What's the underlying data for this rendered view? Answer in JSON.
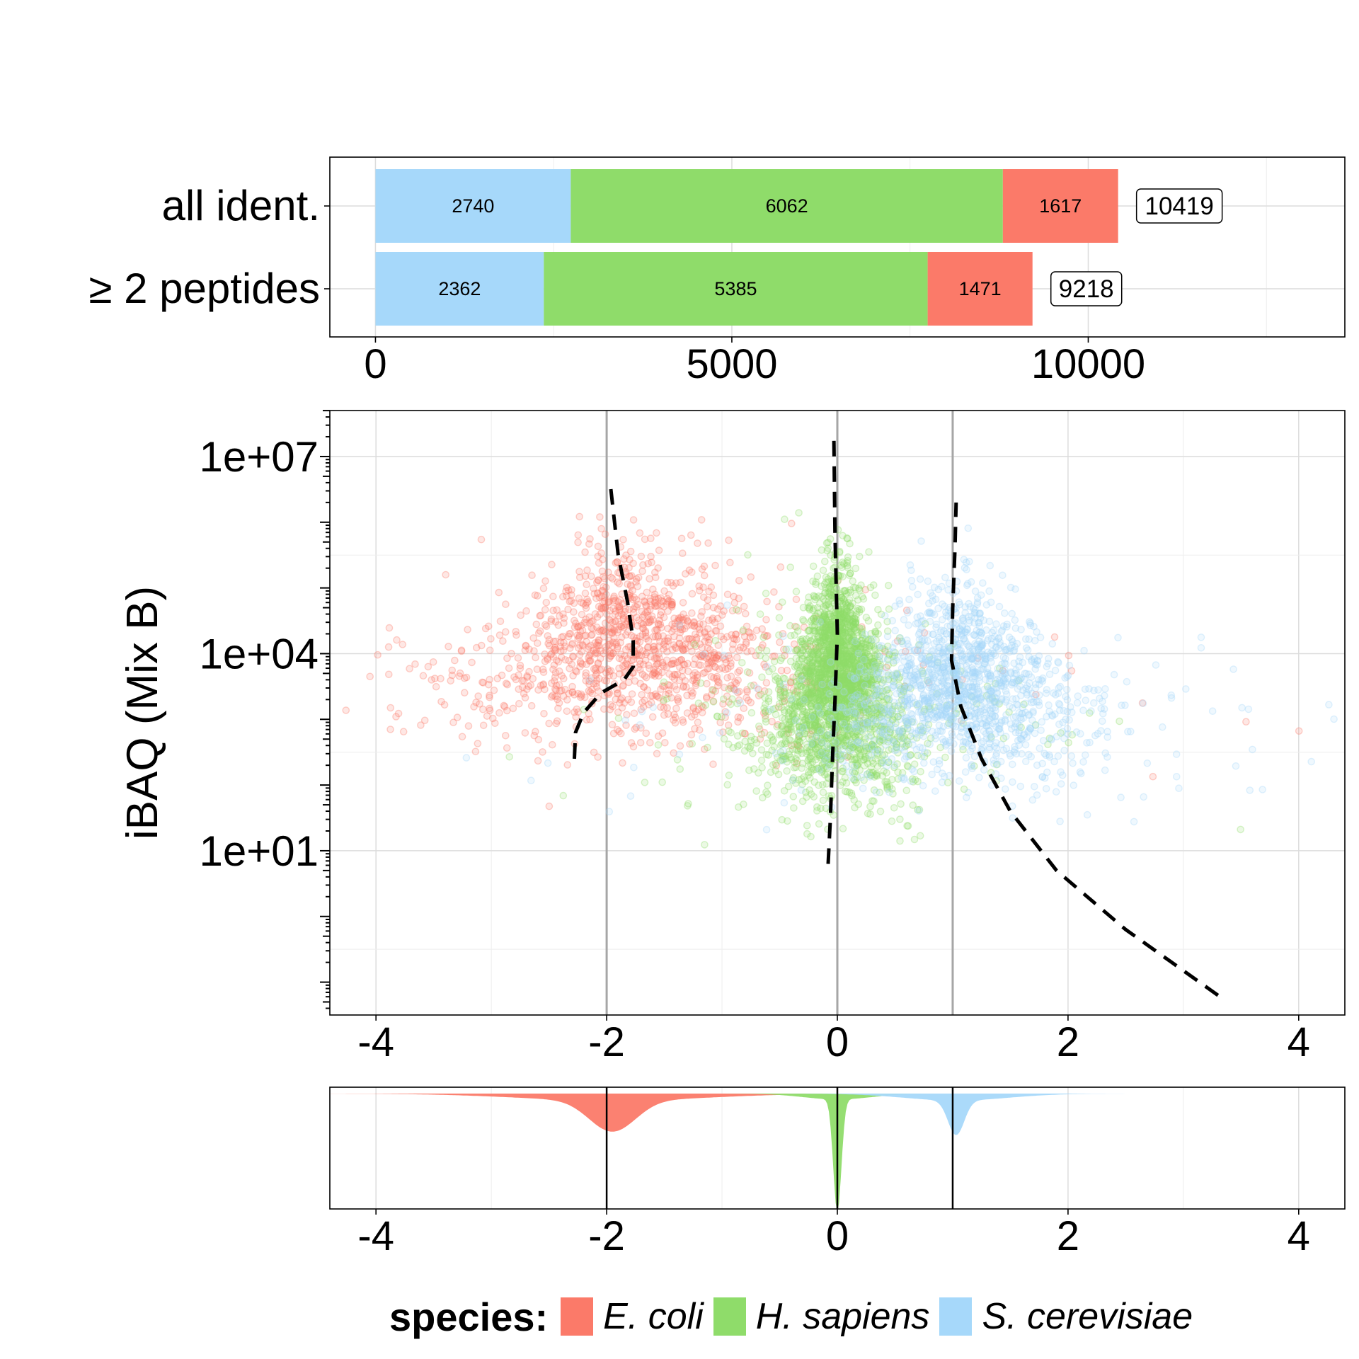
{
  "chart_data": [
    {
      "type": "bar",
      "orientation": "horizontal",
      "stacked": true,
      "categories": [
        "all ident.",
        "≥ 2 peptides"
      ],
      "series": [
        {
          "name": "S. cerevisiae",
          "color": "#a6d8fa",
          "values": [
            2740,
            2362
          ]
        },
        {
          "name": "H. sapiens",
          "color": "#8fdc6a",
          "values": [
            6062,
            5385
          ]
        },
        {
          "name": "E. coli",
          "color": "#fb7a69",
          "values": [
            1617,
            1471
          ]
        }
      ],
      "totals": [
        "10419",
        "9218"
      ],
      "xlim": [
        -640,
        13600
      ],
      "xticks": [
        "0",
        "5000",
        "10000"
      ],
      "grid": true
    },
    {
      "type": "scatter",
      "ylabel": "iBAQ (Mix B)",
      "ylog": true,
      "xlim": [
        -4.4,
        4.4
      ],
      "ylim_log10": [
        -1.5,
        7.7
      ],
      "xticks": [
        "-4",
        "-2",
        "0",
        "2",
        "4"
      ],
      "yticks": [
        "1e+01",
        "1e+04",
        "1e+07"
      ],
      "expected_ratios": [
        -2,
        0,
        1
      ],
      "grid": true,
      "series": [
        {
          "name": "E. coli",
          "color": "#fb7a69",
          "center": -1.75,
          "spread": 0.35,
          "log10_center": 4.0,
          "log10_spread": 0.7,
          "count": 1300
        },
        {
          "name": "H. sapiens",
          "color": "#8fdc6a",
          "center": 0.0,
          "spread": 0.12,
          "log10_center": 3.5,
          "log10_spread": 0.8,
          "count": 2600
        },
        {
          "name": "S. cerevisiae",
          "color": "#a6d8fa",
          "center": 1.05,
          "spread": 0.25,
          "log10_center": 3.4,
          "log10_spread": 0.7,
          "count": 1500
        }
      ],
      "trend_lines": [
        {
          "name": "E. coli",
          "x": [
            -2.28,
            -2.27,
            -2.2,
            -2.05,
            -1.85,
            -1.77,
            -1.77,
            -1.82,
            -1.9,
            -1.97
          ],
          "log10_y": [
            2.4,
            2.8,
            3.1,
            3.4,
            3.6,
            3.8,
            4.2,
            4.8,
            5.5,
            6.6
          ]
        },
        {
          "name": "H. sapiens",
          "x": [
            -0.08,
            -0.06,
            -0.04,
            -0.02,
            0.0,
            -0.02,
            -0.03
          ],
          "log10_y": [
            0.8,
            1.5,
            2.5,
            3.3,
            4.3,
            5.8,
            7.3
          ]
        },
        {
          "name": "S. cerevisiae",
          "x": [
            3.3,
            2.5,
            1.9,
            1.5,
            1.25,
            1.07,
            0.99,
            1.0,
            1.02,
            1.03
          ],
          "log10_y": [
            -1.2,
            -0.2,
            0.7,
            1.6,
            2.4,
            3.2,
            3.9,
            4.7,
            5.6,
            6.3
          ]
        }
      ]
    },
    {
      "type": "area",
      "subtype": "density",
      "xlim": [
        -4.4,
        4.4
      ],
      "xticks": [
        "-4",
        "-2",
        "0",
        "2",
        "4"
      ],
      "reference_lines": [
        -2,
        0,
        1
      ],
      "grid": true,
      "series": [
        {
          "name": "E. coli",
          "color": "#fb7a69",
          "peak_x": -1.95,
          "peak_height": 0.27,
          "width": 0.2,
          "tail": 0.06,
          "tail_width": 0.8
        },
        {
          "name": "H. sapiens",
          "color": "#8fdc6a",
          "peak_x": 0.0,
          "peak_height": 0.98,
          "width": 0.035,
          "tail": 0.05,
          "tail_width": 0.3
        },
        {
          "name": "S. cerevisiae",
          "color": "#a6d8fa",
          "peak_x": 1.03,
          "peak_height": 0.3,
          "width": 0.07,
          "tail": 0.06,
          "tail_width": 0.45
        }
      ]
    }
  ],
  "legend": {
    "title": "species:",
    "items": [
      {
        "label": "E. coli",
        "color": "#fb7a69"
      },
      {
        "label": "H. sapiens",
        "color": "#8fdc6a"
      },
      {
        "label": "S. cerevisiae",
        "color": "#a6d8fa"
      }
    ]
  }
}
